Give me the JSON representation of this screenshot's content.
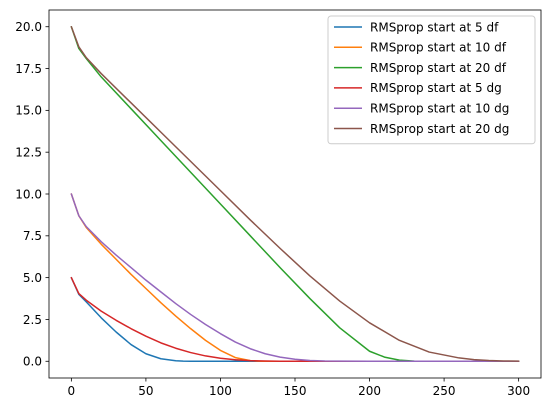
{
  "chart_data": {
    "type": "line",
    "title": "",
    "xlabel": "",
    "ylabel": "",
    "xlim": [
      -15,
      315
    ],
    "ylim": [
      -1.0,
      21.0
    ],
    "xticks": [
      0,
      50,
      100,
      150,
      200,
      250,
      300
    ],
    "yticks": [
      0.0,
      2.5,
      5.0,
      7.5,
      10.0,
      12.5,
      15.0,
      17.5,
      20.0
    ],
    "xtick_labels": [
      "0",
      "50",
      "100",
      "150",
      "200",
      "250",
      "300"
    ],
    "ytick_labels": [
      "0.0",
      "2.5",
      "5.0",
      "7.5",
      "10.0",
      "12.5",
      "15.0",
      "17.5",
      "20.0"
    ],
    "grid": false,
    "legend_position": "top-right",
    "series": [
      {
        "name": "RMSprop start at 5 df",
        "color": "#1f77b4",
        "x": [
          0,
          5,
          10,
          20,
          30,
          40,
          50,
          60,
          70,
          75,
          80,
          100,
          150,
          200,
          250,
          300
        ],
        "y": [
          5.0,
          4.0,
          3.55,
          2.6,
          1.75,
          1.0,
          0.45,
          0.15,
          0.03,
          0.01,
          0.0,
          0.0,
          0.0,
          0.0,
          0.0,
          0.0
        ]
      },
      {
        "name": "RMSprop start at 10 df",
        "color": "#ff7f0e",
        "x": [
          0,
          5,
          10,
          20,
          30,
          40,
          50,
          60,
          70,
          80,
          90,
          100,
          110,
          120,
          125,
          130,
          150,
          200,
          250,
          300
        ],
        "y": [
          10.0,
          8.7,
          8.0,
          7.0,
          6.1,
          5.2,
          4.35,
          3.5,
          2.7,
          1.95,
          1.25,
          0.65,
          0.22,
          0.04,
          0.01,
          0.0,
          0.0,
          0.0,
          0.0,
          0.0
        ]
      },
      {
        "name": "RMSprop start at 20 df",
        "color": "#2ca02c",
        "x": [
          0,
          5,
          10,
          20,
          40,
          60,
          80,
          100,
          120,
          140,
          160,
          180,
          200,
          210,
          220,
          230,
          235,
          240,
          250,
          300
        ],
        "y": [
          20.0,
          18.7,
          18.1,
          17.0,
          15.1,
          13.2,
          11.3,
          9.4,
          7.5,
          5.6,
          3.75,
          2.0,
          0.6,
          0.25,
          0.07,
          0.01,
          0.0,
          0.0,
          0.0,
          0.0
        ]
      },
      {
        "name": "RMSprop start at 5 dg",
        "color": "#d62728",
        "x": [
          0,
          5,
          10,
          20,
          30,
          40,
          50,
          60,
          70,
          80,
          90,
          100,
          110,
          120,
          130,
          140,
          150,
          200,
          250,
          300
        ],
        "y": [
          5.0,
          4.05,
          3.65,
          3.0,
          2.45,
          1.95,
          1.5,
          1.1,
          0.78,
          0.52,
          0.32,
          0.18,
          0.09,
          0.04,
          0.015,
          0.005,
          0.0,
          0.0,
          0.0,
          0.0
        ]
      },
      {
        "name": "RMSprop start at 10 dg",
        "color": "#9467bd",
        "x": [
          0,
          5,
          10,
          20,
          30,
          40,
          50,
          60,
          70,
          80,
          90,
          100,
          110,
          120,
          130,
          140,
          150,
          160,
          170,
          180,
          200,
          250,
          300
        ],
        "y": [
          10.0,
          8.7,
          8.05,
          7.15,
          6.35,
          5.6,
          4.85,
          4.15,
          3.45,
          2.8,
          2.2,
          1.65,
          1.15,
          0.75,
          0.45,
          0.25,
          0.12,
          0.05,
          0.02,
          0.01,
          0.0,
          0.0,
          0.0
        ]
      },
      {
        "name": "RMSprop start at 20 dg",
        "color": "#8c564b",
        "x": [
          0,
          5,
          10,
          20,
          40,
          60,
          80,
          100,
          120,
          140,
          160,
          180,
          200,
          220,
          240,
          260,
          270,
          280,
          290,
          300
        ],
        "y": [
          20.0,
          18.8,
          18.15,
          17.2,
          15.45,
          13.7,
          11.95,
          10.2,
          8.45,
          6.75,
          5.1,
          3.6,
          2.3,
          1.25,
          0.55,
          0.2,
          0.1,
          0.05,
          0.02,
          0.01
        ]
      }
    ]
  }
}
